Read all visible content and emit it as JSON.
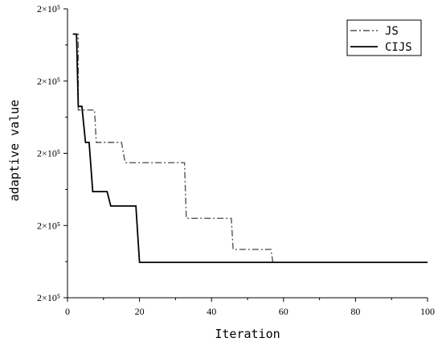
{
  "chart_data": {
    "type": "line",
    "xlabel": "Iteration",
    "ylabel": "adaptive value",
    "xlim": [
      0,
      100
    ],
    "ylim": [
      0,
      4
    ],
    "x_ticks": [
      0,
      20,
      40,
      60,
      80,
      100
    ],
    "x_tick_labels": [
      "0",
      "20",
      "40",
      "60",
      "80",
      "100"
    ],
    "y_ticks": [
      0,
      1,
      2,
      3,
      4
    ],
    "y_tick_labels": [
      "2×10⁵",
      "2×10⁵",
      "2×10⁵",
      "2×10⁵",
      "2×10⁵"
    ],
    "grid": false,
    "legend_position": "top-right",
    "series": [
      {
        "name": "JS",
        "style": "dash-dot",
        "color": "#555555",
        "points": [
          [
            1.5,
            3.65
          ],
          [
            3,
            3.65
          ],
          [
            3,
            2.6
          ],
          [
            7.5,
            2.6
          ],
          [
            8,
            2.15
          ],
          [
            15,
            2.15
          ],
          [
            16,
            1.87
          ],
          [
            32.5,
            1.87
          ],
          [
            33,
            1.1
          ],
          [
            45.5,
            1.1
          ],
          [
            46,
            0.67
          ],
          [
            56.5,
            0.67
          ],
          [
            57,
            0.5
          ]
        ]
      },
      {
        "name": "CIJS",
        "style": "solid",
        "color": "#000000",
        "points": [
          [
            1.5,
            3.65
          ],
          [
            2.5,
            3.65
          ],
          [
            3,
            2.65
          ],
          [
            4,
            2.65
          ],
          [
            5,
            2.15
          ],
          [
            6,
            2.15
          ],
          [
            7,
            1.47
          ],
          [
            11,
            1.47
          ],
          [
            12,
            1.27
          ],
          [
            19,
            1.27
          ],
          [
            20,
            0.49
          ],
          [
            100,
            0.49
          ]
        ]
      }
    ]
  }
}
